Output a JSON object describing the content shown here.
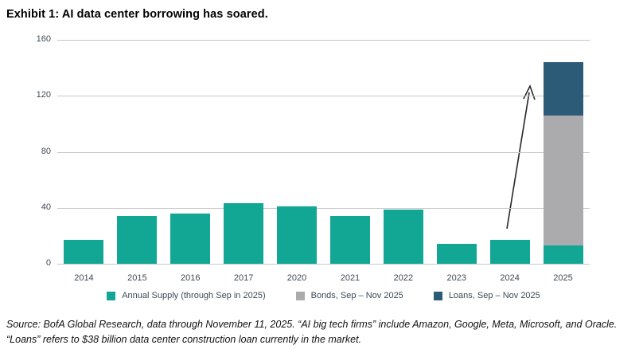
{
  "title": "Exhibit 1: AI data center borrowing has soared.",
  "source_note": {
    "line1": "Source: BofA Global Research, data through November 11, 2025. “AI big tech firms” include Amazon, Google, Meta, Microsoft, and Oracle.",
    "line2": "“Loans” refers to $38 billion data center construction loan currently in the market."
  },
  "chart_data": {
    "type": "bar",
    "stacked": true,
    "title": "Exhibit 1: AI data center borrowing has soared.",
    "categories": [
      "2014",
      "2015",
      "2016",
      "2017",
      "2020",
      "2021",
      "2022",
      "2023",
      "2024",
      "2025"
    ],
    "series": [
      {
        "name": "Annual Supply (through Sep in 2025)",
        "color": "#12a795",
        "values": [
          17,
          34,
          36,
          43,
          41,
          34,
          39,
          14,
          17,
          13
        ]
      },
      {
        "name": "Bonds, Sep – Nov 2025",
        "color": "#ababad",
        "values": [
          0,
          0,
          0,
          0,
          0,
          0,
          0,
          0,
          0,
          93
        ]
      },
      {
        "name": "Loans, Sep – Nov 2025",
        "color": "#2b5b76",
        "values": [
          0,
          0,
          0,
          0,
          0,
          0,
          0,
          0,
          0,
          38
        ]
      }
    ],
    "xlabel": "",
    "ylabel": "",
    "ylim": [
      0,
      160
    ],
    "yticks": [
      0,
      40,
      80,
      120,
      160
    ],
    "grid": true,
    "legend_position": "bottom",
    "annotations": [
      {
        "type": "arrow",
        "from_category": "2024",
        "to_category": "2025",
        "meaning": "sharp jump in 2025 borrowing"
      }
    ]
  },
  "colors": {
    "accent_teal": "#12a795",
    "bond_gray": "#ababad",
    "loan_blue": "#2b5b76",
    "gridline": "#c5c7c9",
    "tick_text": "#3f4a55",
    "arrow": "#262626"
  }
}
